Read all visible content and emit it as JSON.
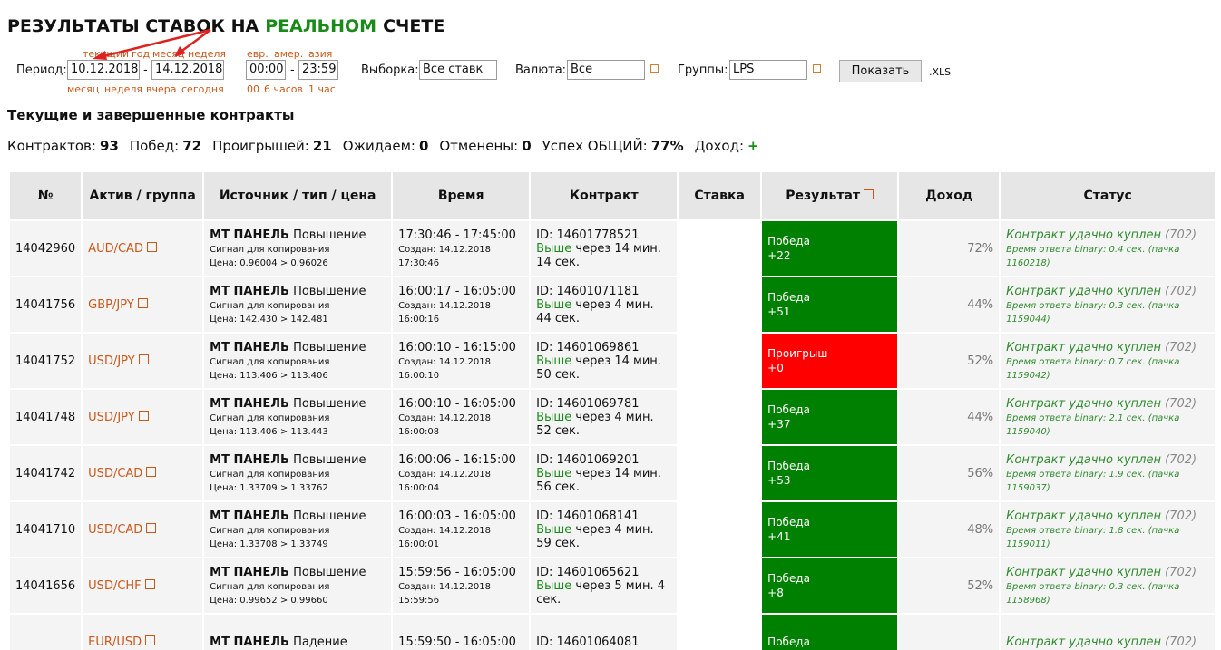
{
  "header": {
    "title_pre": "РЕЗУЛЬТАТЫ СТАВОК НА",
    "title_highlight": "РЕАЛЬНОМ",
    "title_post": "СЧЕТЕ"
  },
  "filters": {
    "period_label": "Период:",
    "date_top_links": [
      "текущий",
      "год",
      "месяц",
      "неделя"
    ],
    "date_from": "10.12.2018",
    "separator": "-",
    "date_to": "14.12.2018",
    "date_bottom_links": [
      "месяц",
      "неделя",
      "вчера",
      "сегодня"
    ],
    "time_top_links": [
      "евр.",
      "амер.",
      "азия"
    ],
    "time_from": "00:00",
    "time_to": "23:59",
    "time_bottom_links": [
      "00",
      "6 часов",
      "1 час"
    ],
    "selection_label": "Выборка:",
    "selection_value": "Все ставк",
    "currency_label": "Валюта:",
    "currency_value": "Все",
    "groups_label": "Группы:",
    "groups_value": "LPS",
    "show_button": "Показать",
    "xls": ".XLS"
  },
  "section_title": "Текущие и завершенные контракты",
  "stats": [
    {
      "label": "Контрактов:",
      "value": "93"
    },
    {
      "label": "Побед:",
      "value": "72"
    },
    {
      "label": "Проигрышей:",
      "value": "21"
    },
    {
      "label": "Ожидаем:",
      "value": "0"
    },
    {
      "label": "Отменены:",
      "value": "0"
    },
    {
      "label": "Успех ОБЩИЙ:",
      "value": "77%"
    },
    {
      "label": "Доход:",
      "value": "+"
    }
  ],
  "table": {
    "headers": [
      "№",
      "Актив / группа",
      "Источник / тип / цена",
      "Время",
      "Контракт",
      "Ставка",
      "Результат",
      "Доход",
      "Статус"
    ],
    "rows": [
      {
        "id": "14042960",
        "asset": "AUD/CAD",
        "source": "МТ ПАНЕЛЬ",
        "type": "Повышение",
        "signal": "Сигнал для копирования",
        "price": "Цена: 0.96004 > 0.96026",
        "time": "17:30:46 - 17:45:00",
        "created": "Создан: 14.12.2018 17:30:46",
        "contract_id": "ID: 14601778521",
        "direction": "Выше",
        "duration": "через 14 мин. 14 сек.",
        "result": "Победа",
        "result_amount": "+22",
        "result_color": "#008000",
        "income": "72%",
        "status": "Контракт удачно куплен",
        "status_code": "(702)",
        "response": "Время ответа binary: 0.4 сек. (пачка 1160218)"
      },
      {
        "id": "14041756",
        "asset": "GBP/JPY",
        "source": "МТ ПАНЕЛЬ",
        "type": "Повышение",
        "signal": "Сигнал для копирования",
        "price": "Цена: 142.430 > 142.481",
        "time": "16:00:17 - 16:05:00",
        "created": "Создан: 14.12.2018 16:00:16",
        "contract_id": "ID: 14601071181",
        "direction": "Выше",
        "duration": "через 4 мин. 44 сек.",
        "result": "Победа",
        "result_amount": "+51",
        "result_color": "#008000",
        "income": "44%",
        "status": "Контракт удачно куплен",
        "status_code": "(702)",
        "response": "Время ответа binary: 0.3 сек. (пачка 1159044)"
      },
      {
        "id": "14041752",
        "asset": "USD/JPY",
        "source": "МТ ПАНЕЛЬ",
        "type": "Повышение",
        "signal": "Сигнал для копирования",
        "price": "Цена: 113.406 > 113.406",
        "time": "16:00:10 - 16:15:00",
        "created": "Создан: 14.12.2018 16:00:10",
        "contract_id": "ID: 14601069861",
        "direction": "Выше",
        "duration": "через 14 мин. 50 сек.",
        "result": "Проигрыш",
        "result_amount": "+0",
        "result_color": "#ff0000",
        "income": "52%",
        "status": "Контракт удачно куплен",
        "status_code": "(702)",
        "response": "Время ответа binary: 0.7 сек. (пачка 1159042)"
      },
      {
        "id": "14041748",
        "asset": "USD/JPY",
        "source": "МТ ПАНЕЛЬ",
        "type": "Повышение",
        "signal": "Сигнал для копирования",
        "price": "Цена: 113.406 > 113.443",
        "time": "16:00:10 - 16:05:00",
        "created": "Создан: 14.12.2018 16:00:08",
        "contract_id": "ID: 14601069781",
        "direction": "Выше",
        "duration": "через 4 мин. 52 сек.",
        "result": "Победа",
        "result_amount": "+37",
        "result_color": "#008000",
        "income": "44%",
        "status": "Контракт удачно куплен",
        "status_code": "(702)",
        "response": "Время ответа binary: 2.1 сек. (пачка 1159040)"
      },
      {
        "id": "14041742",
        "asset": "USD/CAD",
        "source": "МТ ПАНЕЛЬ",
        "type": "Повышение",
        "signal": "Сигнал для копирования",
        "price": "Цена: 1.33709 > 1.33762",
        "time": "16:00:06 - 16:15:00",
        "created": "Создан: 14.12.2018 16:00:04",
        "contract_id": "ID: 14601069201",
        "direction": "Выше",
        "duration": "через 14 мин. 56 сек.",
        "result": "Победа",
        "result_amount": "+53",
        "result_color": "#008000",
        "income": "56%",
        "status": "Контракт удачно куплен",
        "status_code": "(702)",
        "response": "Время ответа binary: 1.9 сек. (пачка 1159037)"
      },
      {
        "id": "14041710",
        "asset": "USD/CAD",
        "source": "МТ ПАНЕЛЬ",
        "type": "Повышение",
        "signal": "Сигнал для копирования",
        "price": "Цена: 1.33708 > 1.33749",
        "time": "16:00:03 - 16:05:00",
        "created": "Создан: 14.12.2018 16:00:01",
        "contract_id": "ID: 14601068141",
        "direction": "Выше",
        "duration": "через 4 мин. 59 сек.",
        "result": "Победа",
        "result_amount": "+41",
        "result_color": "#008000",
        "income": "48%",
        "status": "Контракт удачно куплен",
        "status_code": "(702)",
        "response": "Время ответа binary: 1.8 сек. (пачка 1159011)"
      },
      {
        "id": "14041656",
        "asset": "USD/CHF",
        "source": "МТ ПАНЕЛЬ",
        "type": "Повышение",
        "signal": "Сигнал для копирования",
        "price": "Цена: 0.99652 > 0.99660",
        "time": "15:59:56 - 16:05:00",
        "created": "Создан: 14.12.2018 15:59:56",
        "contract_id": "ID: 14601065621",
        "direction": "Выше",
        "duration": "через 5 мин. 4 сек.",
        "result": "Победа",
        "result_amount": "+8",
        "result_color": "#008000",
        "income": "52%",
        "status": "Контракт удачно куплен",
        "status_code": "(702)",
        "response": "Время ответа binary: 0.3 сек. (пачка 1158968)"
      },
      {
        "asset": "EUR/USD",
        "source": "МТ ПАНЕЛЬ",
        "type": "Падение",
        "time": "15:59:50 - 16:05:00",
        "contract_id": "ID: 14601064081",
        "result": "Победа",
        "result_color": "#008000",
        "status": "Контракт удачно куплен",
        "status_code": "(702)"
      }
    ]
  }
}
